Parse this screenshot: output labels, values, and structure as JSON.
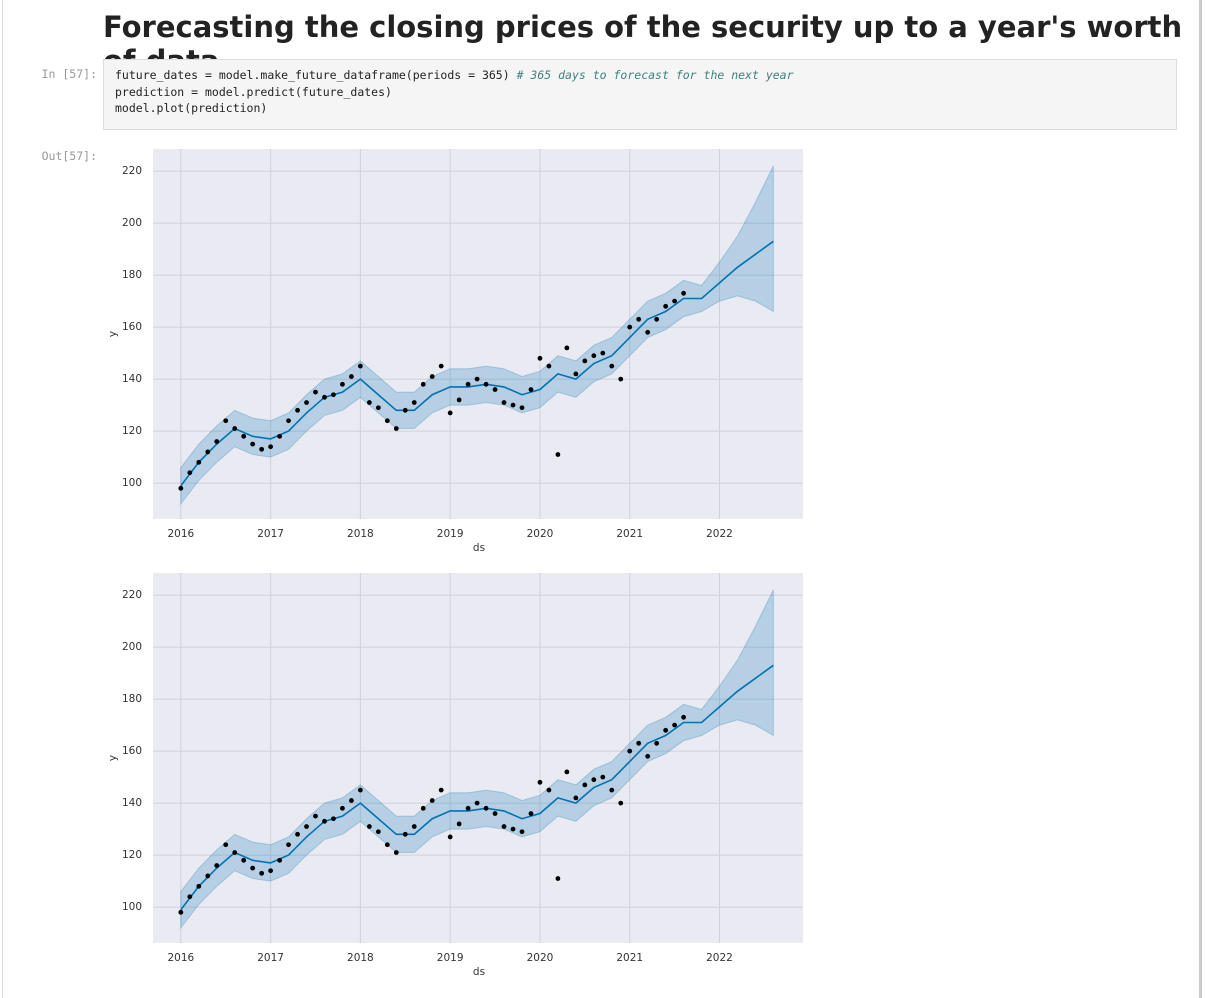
{
  "title": "Forecasting the closing prices of the security up to a year's worth of data",
  "in_prompt": "In [57]:",
  "out_prompt": "Out[57]:",
  "code": [
    "future_dates = model.make_future_dataframe(periods = 365) ",
    "prediction = model.predict(future_dates)",
    "model.plot(prediction)"
  ],
  "code_comment": "# 365 days to forecast for the next year",
  "chart_data": [
    {
      "type": "forecast",
      "x_label": "ds",
      "y_label": "y",
      "xlim": [
        2015.69,
        2022.93
      ],
      "ylim": [
        86.2,
        228.5
      ],
      "xticks": [
        2016,
        2017,
        2018,
        2019,
        2020,
        2021,
        2022
      ],
      "yticks": [
        100,
        120,
        140,
        160,
        180,
        200,
        220
      ],
      "grid": true,
      "background": "#eaeaf2",
      "series": [
        {
          "type": "band",
          "color": "#0072b2",
          "x": [
            2016,
            2016.2,
            2016.4,
            2016.6,
            2016.8,
            2017,
            2017.2,
            2017.4,
            2017.6,
            2017.8,
            2018,
            2018.2,
            2018.4,
            2018.6,
            2018.8,
            2019,
            2019.2,
            2019.4,
            2019.6,
            2019.8,
            2020,
            2020.2,
            2020.4,
            2020.6,
            2020.8,
            2021,
            2021.2,
            2021.4,
            2021.6,
            2021.8,
            2022,
            2022.2,
            2022.4,
            2022.6
          ],
          "lower": [
            92,
            101,
            108,
            114,
            111,
            110,
            113,
            120,
            126,
            128,
            133,
            127,
            121,
            121,
            127,
            130,
            130,
            131,
            130,
            127,
            129,
            135,
            133,
            139,
            142,
            149,
            156,
            159,
            164,
            166,
            170,
            172,
            170,
            166
          ],
          "upper": [
            106,
            115,
            122,
            128,
            125,
            124,
            127,
            134,
            140,
            142,
            147,
            141,
            135,
            135,
            141,
            144,
            144,
            145,
            144,
            141,
            143,
            149,
            147,
            153,
            156,
            163,
            170,
            173,
            178,
            176,
            185,
            195,
            208,
            222
          ]
        },
        {
          "type": "line",
          "color": "#0072b2",
          "x": [
            2016,
            2016.2,
            2016.4,
            2016.6,
            2016.8,
            2017,
            2017.2,
            2017.4,
            2017.6,
            2017.8,
            2018,
            2018.2,
            2018.4,
            2018.6,
            2018.8,
            2019,
            2019.2,
            2019.4,
            2019.6,
            2019.8,
            2020,
            2020.2,
            2020.4,
            2020.6,
            2020.8,
            2021,
            2021.2,
            2021.4,
            2021.6,
            2021.8,
            2022,
            2022.2,
            2022.4,
            2022.6
          ],
          "values": [
            99,
            108,
            115,
            121,
            118,
            117,
            120,
            127,
            133,
            135,
            140,
            134,
            128,
            128,
            134,
            137,
            137,
            138,
            137,
            134,
            136,
            142,
            140,
            146,
            149,
            156,
            163,
            166,
            171,
            171,
            177,
            183,
            188,
            193
          ]
        },
        {
          "type": "scatter",
          "color": "#000000",
          "x": [
            2016,
            2016.1,
            2016.2,
            2016.3,
            2016.4,
            2016.5,
            2016.6,
            2016.7,
            2016.8,
            2016.9,
            2017,
            2017.1,
            2017.2,
            2017.3,
            2017.4,
            2017.5,
            2017.6,
            2017.7,
            2017.8,
            2017.9,
            2018,
            2018.1,
            2018.2,
            2018.3,
            2018.4,
            2018.5,
            2018.6,
            2018.7,
            2018.8,
            2018.9,
            2019,
            2019.1,
            2019.2,
            2019.3,
            2019.4,
            2019.5,
            2019.6,
            2019.7,
            2019.8,
            2019.9,
            2020,
            2020.1,
            2020.2,
            2020.3,
            2020.4,
            2020.5,
            2020.6,
            2020.7,
            2020.8,
            2020.9,
            2021,
            2021.1,
            2021.2,
            2021.3,
            2021.4,
            2021.5,
            2021.6
          ],
          "values": [
            98,
            104,
            108,
            112,
            116,
            124,
            121,
            118,
            115,
            113,
            114,
            118,
            124,
            128,
            131,
            135,
            133,
            134,
            138,
            141,
            145,
            131,
            129,
            124,
            121,
            128,
            131,
            138,
            141,
            145,
            127,
            132,
            138,
            140,
            138,
            136,
            131,
            130,
            129,
            136,
            148,
            145,
            111,
            152,
            142,
            147,
            149,
            150,
            145,
            140,
            160,
            163,
            158,
            163,
            168,
            170,
            173
          ]
        }
      ]
    },
    {
      "type": "forecast",
      "x_label": "ds",
      "y_label": "y",
      "xlim": [
        2015.69,
        2022.93
      ],
      "ylim": [
        86.2,
        228.5
      ],
      "xticks": [
        2016,
        2017,
        2018,
        2019,
        2020,
        2021,
        2022
      ],
      "yticks": [
        100,
        120,
        140,
        160,
        180,
        200,
        220
      ],
      "grid": true,
      "background": "#eaeaf2",
      "series": [
        {
          "type": "band",
          "color": "#0072b2",
          "x": [
            2016,
            2016.2,
            2016.4,
            2016.6,
            2016.8,
            2017,
            2017.2,
            2017.4,
            2017.6,
            2017.8,
            2018,
            2018.2,
            2018.4,
            2018.6,
            2018.8,
            2019,
            2019.2,
            2019.4,
            2019.6,
            2019.8,
            2020,
            2020.2,
            2020.4,
            2020.6,
            2020.8,
            2021,
            2021.2,
            2021.4,
            2021.6,
            2021.8,
            2022,
            2022.2,
            2022.4,
            2022.6
          ],
          "lower": [
            92,
            101,
            108,
            114,
            111,
            110,
            113,
            120,
            126,
            128,
            133,
            127,
            121,
            121,
            127,
            130,
            130,
            131,
            130,
            127,
            129,
            135,
            133,
            139,
            142,
            149,
            156,
            159,
            164,
            166,
            170,
            172,
            170,
            166
          ],
          "upper": [
            106,
            115,
            122,
            128,
            125,
            124,
            127,
            134,
            140,
            142,
            147,
            141,
            135,
            135,
            141,
            144,
            144,
            145,
            144,
            141,
            143,
            149,
            147,
            153,
            156,
            163,
            170,
            173,
            178,
            176,
            185,
            195,
            208,
            222
          ]
        },
        {
          "type": "line",
          "color": "#0072b2",
          "x": [
            2016,
            2016.2,
            2016.4,
            2016.6,
            2016.8,
            2017,
            2017.2,
            2017.4,
            2017.6,
            2017.8,
            2018,
            2018.2,
            2018.4,
            2018.6,
            2018.8,
            2019,
            2019.2,
            2019.4,
            2019.6,
            2019.8,
            2020,
            2020.2,
            2020.4,
            2020.6,
            2020.8,
            2021,
            2021.2,
            2021.4,
            2021.6,
            2021.8,
            2022,
            2022.2,
            2022.4,
            2022.6
          ],
          "values": [
            99,
            108,
            115,
            121,
            118,
            117,
            120,
            127,
            133,
            135,
            140,
            134,
            128,
            128,
            134,
            137,
            137,
            138,
            137,
            134,
            136,
            142,
            140,
            146,
            149,
            156,
            163,
            166,
            171,
            171,
            177,
            183,
            188,
            193
          ]
        },
        {
          "type": "scatter",
          "color": "#000000",
          "x": [
            2016,
            2016.1,
            2016.2,
            2016.3,
            2016.4,
            2016.5,
            2016.6,
            2016.7,
            2016.8,
            2016.9,
            2017,
            2017.1,
            2017.2,
            2017.3,
            2017.4,
            2017.5,
            2017.6,
            2017.7,
            2017.8,
            2017.9,
            2018,
            2018.1,
            2018.2,
            2018.3,
            2018.4,
            2018.5,
            2018.6,
            2018.7,
            2018.8,
            2018.9,
            2019,
            2019.1,
            2019.2,
            2019.3,
            2019.4,
            2019.5,
            2019.6,
            2019.7,
            2019.8,
            2019.9,
            2020,
            2020.1,
            2020.2,
            2020.3,
            2020.4,
            2020.5,
            2020.6,
            2020.7,
            2020.8,
            2020.9,
            2021,
            2021.1,
            2021.2,
            2021.3,
            2021.4,
            2021.5,
            2021.6
          ],
          "values": [
            98,
            104,
            108,
            112,
            116,
            124,
            121,
            118,
            115,
            113,
            114,
            118,
            124,
            128,
            131,
            135,
            133,
            134,
            138,
            141,
            145,
            131,
            129,
            124,
            121,
            128,
            131,
            138,
            141,
            145,
            127,
            132,
            138,
            140,
            138,
            136,
            131,
            130,
            129,
            136,
            148,
            145,
            111,
            152,
            142,
            147,
            149,
            150,
            145,
            140,
            160,
            163,
            158,
            163,
            168,
            170,
            173
          ]
        }
      ]
    }
  ]
}
